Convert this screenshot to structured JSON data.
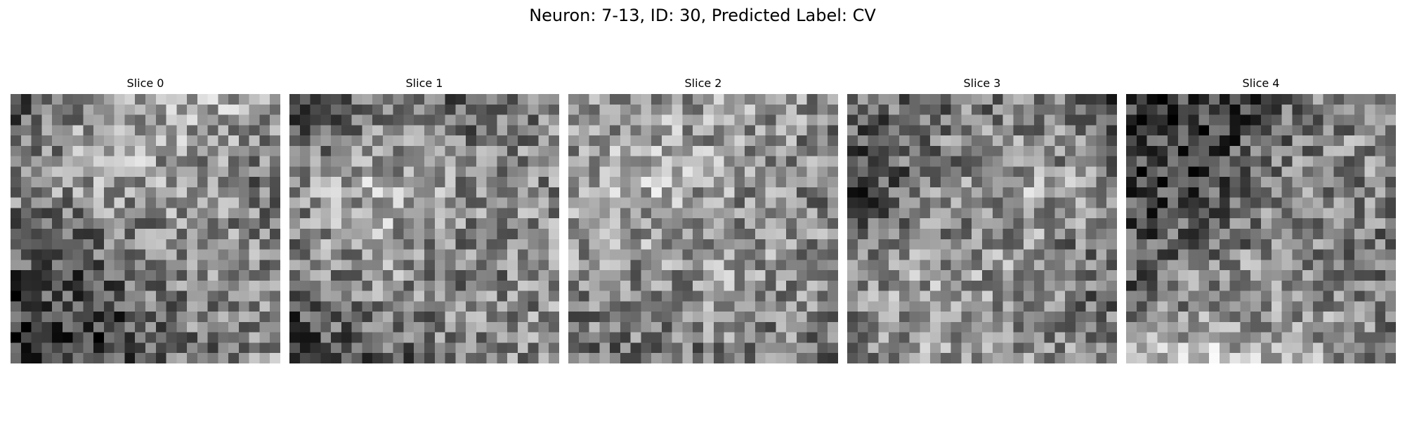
{
  "figure": {
    "title": "Neuron: 7-13, ID: 30, Predicted Label: CV"
  },
  "panels": [
    {
      "title": "Slice 0",
      "colormap": "gray",
      "grid": [
        26,
        26
      ]
    },
    {
      "title": "Slice 1",
      "colormap": "gray",
      "grid": [
        26,
        26
      ]
    },
    {
      "title": "Slice 2",
      "colormap": "gray",
      "grid": [
        26,
        26
      ]
    },
    {
      "title": "Slice 3",
      "colormap": "gray",
      "grid": [
        26,
        26
      ]
    },
    {
      "title": "Slice 4",
      "colormap": "gray",
      "grid": [
        26,
        26
      ]
    }
  ]
}
